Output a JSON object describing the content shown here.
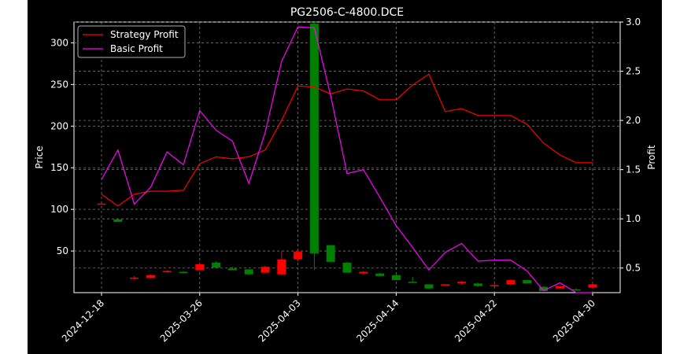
{
  "chart_data": {
    "type": "candlestick",
    "title": "PG2506-C-4800.DCE",
    "ylabel": "Price",
    "y2label": "Profit",
    "grid": true,
    "legend_position": "top-left",
    "background": "#000000",
    "x_tick_labels": [
      "2024-12-18",
      "2025-03-26",
      "2025-04-03",
      "2025-04-14",
      "2025-04-22",
      "2025-04-30"
    ],
    "x_tick_indices": [
      0,
      6,
      12,
      18,
      24,
      30
    ],
    "ylim": [
      0,
      325
    ],
    "y_ticks": [
      50,
      100,
      150,
      200,
      250,
      300
    ],
    "y2lim": [
      0.25,
      3.0
    ],
    "y2_ticks": [
      0.5,
      1.0,
      1.5,
      2.0,
      2.5,
      3.0
    ],
    "candles": [
      {
        "o": 106,
        "h": 107,
        "l": 106,
        "c": 107
      },
      {
        "o": 88,
        "h": 88,
        "l": 85,
        "c": 85
      },
      {
        "o": 17,
        "h": 20,
        "l": 16,
        "c": 18
      },
      {
        "o": 18,
        "h": 22,
        "l": 17,
        "c": 21
      },
      {
        "o": 25,
        "h": 27,
        "l": 24,
        "c": 26
      },
      {
        "o": 25,
        "h": 26,
        "l": 24,
        "c": 24
      },
      {
        "o": 27,
        "h": 36,
        "l": 27,
        "c": 34
      },
      {
        "o": 36,
        "h": 38,
        "l": 30,
        "c": 30
      },
      {
        "o": 29,
        "h": 31,
        "l": 27,
        "c": 27
      },
      {
        "o": 28,
        "h": 28,
        "l": 21,
        "c": 22
      },
      {
        "o": 24,
        "h": 32,
        "l": 23,
        "c": 31
      },
      {
        "o": 22,
        "h": 50,
        "l": 21,
        "c": 40
      },
      {
        "o": 40,
        "h": 52,
        "l": 38,
        "c": 49
      },
      {
        "o": 323,
        "h": 325,
        "l": 27,
        "c": 47
      },
      {
        "o": 57,
        "h": 57,
        "l": 37,
        "c": 37
      },
      {
        "o": 36,
        "h": 37,
        "l": 24,
        "c": 24
      },
      {
        "o": 23,
        "h": 26,
        "l": 21,
        "c": 25
      },
      {
        "o": 23,
        "h": 24,
        "l": 20,
        "c": 20
      },
      {
        "o": 21,
        "h": 23,
        "l": 15,
        "c": 15
      },
      {
        "o": 13,
        "h": 19,
        "l": 12,
        "c": 12
      },
      {
        "o": 10,
        "h": 10,
        "l": 5,
        "c": 5
      },
      {
        "o": 10,
        "h": 10,
        "l": 9,
        "c": 10
      },
      {
        "o": 11,
        "h": 14,
        "l": 10,
        "c": 13
      },
      {
        "o": 11,
        "h": 12,
        "l": 7,
        "c": 8
      },
      {
        "o": 9,
        "h": 10,
        "l": 8,
        "c": 9
      },
      {
        "o": 10,
        "h": 16,
        "l": 9,
        "c": 15
      },
      {
        "o": 15,
        "h": 15,
        "l": 11,
        "c": 11
      },
      {
        "o": 7,
        "h": 8,
        "l": 2,
        "c": 2
      },
      {
        "o": 5,
        "h": 8,
        "l": 5,
        "c": 8
      },
      {
        "o": 4,
        "h": 5,
        "l": 3,
        "c": 3
      },
      {
        "o": 6,
        "h": 11,
        "l": 5,
        "c": 10
      }
    ],
    "series": [
      {
        "name": "Strategy Profit",
        "color": "#ff0000",
        "axis": "right",
        "values": [
          1.25,
          1.13,
          1.25,
          1.28,
          1.28,
          1.29,
          1.56,
          1.63,
          1.61,
          1.63,
          1.7,
          2.0,
          2.35,
          2.34,
          2.27,
          2.32,
          2.3,
          2.21,
          2.21,
          2.36,
          2.47,
          2.09,
          2.12,
          2.05,
          2.05,
          2.05,
          1.96,
          1.77,
          1.65,
          1.57,
          1.57
        ]
      },
      {
        "name": "Basic Profit",
        "color": "#ff00ff",
        "axis": "right",
        "values": [
          1.4,
          1.7,
          1.15,
          1.32,
          1.68,
          1.55,
          2.1,
          1.9,
          1.79,
          1.36,
          1.88,
          2.6,
          2.95,
          2.94,
          2.25,
          1.46,
          1.5,
          1.22,
          0.93,
          0.71,
          0.48,
          0.66,
          0.75,
          0.57,
          0.58,
          0.58,
          0.47,
          0.27,
          0.35,
          0.25,
          0.25
        ]
      }
    ]
  }
}
